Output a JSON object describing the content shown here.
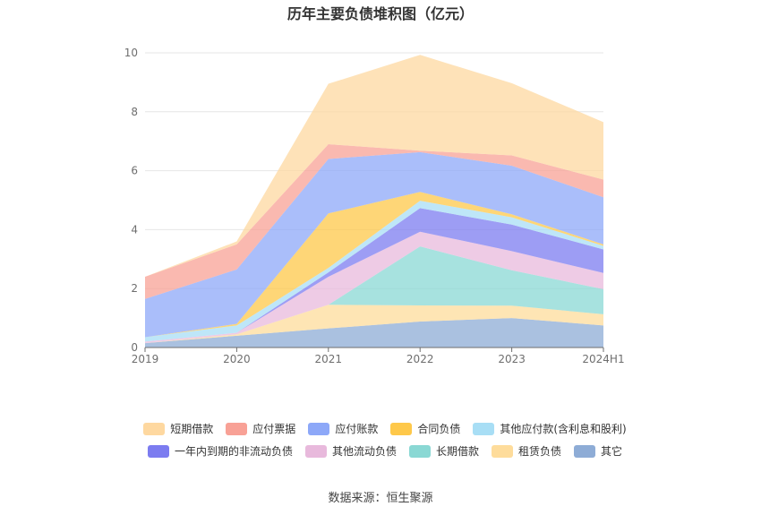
{
  "title": "历年主要负债堆积图（亿元）",
  "source": "数据来源：恒生聚源",
  "chart_data": {
    "type": "area",
    "stacked": true,
    "categories": [
      "2019",
      "2020",
      "2021",
      "2022",
      "2023",
      "2024H1"
    ],
    "ylim": [
      0,
      10
    ],
    "yticks": [
      "0",
      "2",
      "4",
      "6",
      "8",
      "10"
    ],
    "series": [
      {
        "name": "其它",
        "color": "#8eacd6",
        "values": [
          0.15,
          0.4,
          0.65,
          0.88,
          1.0,
          0.75
        ]
      },
      {
        "name": "租赁负债",
        "color": "#fedc9b",
        "values": [
          0.0,
          0.05,
          0.8,
          0.55,
          0.42,
          0.38
        ]
      },
      {
        "name": "长期借款",
        "color": "#8ad8d4",
        "values": [
          0.0,
          0.0,
          0.0,
          2.0,
          1.2,
          0.85
        ]
      },
      {
        "name": "其他流动负债",
        "color": "#e8b9dc",
        "values": [
          0.05,
          0.05,
          0.95,
          0.5,
          0.65,
          0.55
        ]
      },
      {
        "name": "一年内到期的非流动负债",
        "color": "#7c7cf0",
        "values": [
          0.0,
          0.0,
          0.15,
          0.8,
          0.9,
          0.8
        ]
      },
      {
        "name": "其他应付款(含利息和股利)",
        "color": "#a8def5",
        "values": [
          0.15,
          0.25,
          0.15,
          0.25,
          0.25,
          0.12
        ]
      },
      {
        "name": "合同负债",
        "color": "#fec84a",
        "values": [
          0.0,
          0.05,
          1.85,
          0.3,
          0.1,
          0.05
        ]
      },
      {
        "name": "应付账款",
        "color": "#8da8f8",
        "values": [
          1.3,
          1.85,
          1.85,
          1.35,
          1.65,
          1.6
        ]
      },
      {
        "name": "应付票据",
        "color": "#f8a196",
        "values": [
          0.75,
          0.85,
          0.5,
          0.05,
          0.35,
          0.6
        ]
      },
      {
        "name": "短期借款",
        "color": "#fed8a0",
        "values": [
          0.0,
          0.1,
          2.05,
          3.25,
          2.45,
          1.95
        ]
      }
    ]
  },
  "legend": {
    "row1": [
      "短期借款",
      "应付票据",
      "应付账款",
      "合同负债",
      "其他应付款(含利息和股利)"
    ],
    "row2": [
      "一年内到期的非流动负债",
      "其他流动负债",
      "长期借款",
      "租赁负债",
      "其它"
    ]
  }
}
